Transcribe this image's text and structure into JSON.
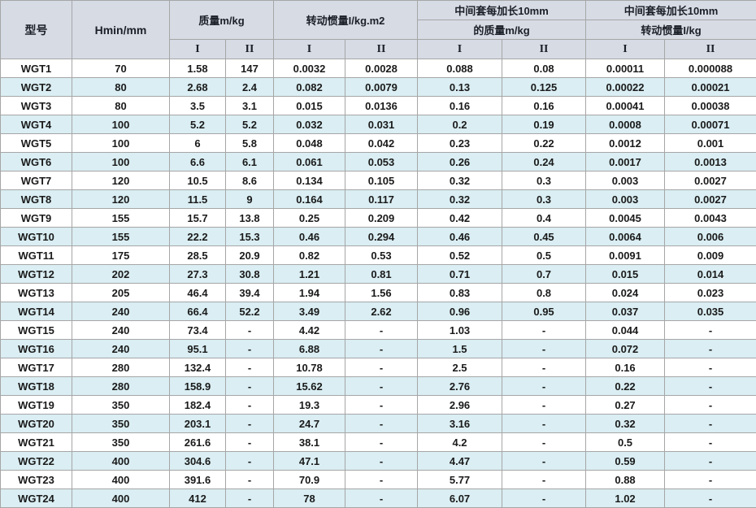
{
  "table": {
    "header": {
      "col_model": "型号",
      "col_hmin": "Hmin/mm",
      "group_mass": "质量m/kg",
      "group_inertia": "转动惯量I/kg.m2",
      "group_ext_mass_line1": "中间套每加长10mm",
      "group_ext_mass_line2": "的质量m/kg",
      "group_ext_inertia_line1": "中间套每加长10mm",
      "group_ext_inertia_line2": "转动惯量I/kg",
      "sub_I": "I",
      "sub_II": "II"
    },
    "rows": [
      [
        "WGT1",
        "70",
        "1.58",
        "147",
        "0.0032",
        "0.0028",
        "0.088",
        "0.08",
        "0.00011",
        "0.000088"
      ],
      [
        "WGT2",
        "80",
        "2.68",
        "2.4",
        "0.082",
        "0.0079",
        "0.13",
        "0.125",
        "0.00022",
        "0.00021"
      ],
      [
        "WGT3",
        "80",
        "3.5",
        "3.1",
        "0.015",
        "0.0136",
        "0.16",
        "0.16",
        "0.00041",
        "0.00038"
      ],
      [
        "WGT4",
        "100",
        "5.2",
        "5.2",
        "0.032",
        "0.031",
        "0.2",
        "0.19",
        "0.0008",
        "0.00071"
      ],
      [
        "WGT5",
        "100",
        "6",
        "5.8",
        "0.048",
        "0.042",
        "0.23",
        "0.22",
        "0.0012",
        "0.001"
      ],
      [
        "WGT6",
        "100",
        "6.6",
        "6.1",
        "0.061",
        "0.053",
        "0.26",
        "0.24",
        "0.0017",
        "0.0013"
      ],
      [
        "WGT7",
        "120",
        "10.5",
        "8.6",
        "0.134",
        "0.105",
        "0.32",
        "0.3",
        "0.003",
        "0.0027"
      ],
      [
        "WGT8",
        "120",
        "11.5",
        "9",
        "0.164",
        "0.117",
        "0.32",
        "0.3",
        "0.003",
        "0.0027"
      ],
      [
        "WGT9",
        "155",
        "15.7",
        "13.8",
        "0.25",
        "0.209",
        "0.42",
        "0.4",
        "0.0045",
        "0.0043"
      ],
      [
        "WGT10",
        "155",
        "22.2",
        "15.3",
        "0.46",
        "0.294",
        "0.46",
        "0.45",
        "0.0064",
        "0.006"
      ],
      [
        "WGT11",
        "175",
        "28.5",
        "20.9",
        "0.82",
        "0.53",
        "0.52",
        "0.5",
        "0.0091",
        "0.009"
      ],
      [
        "WGT12",
        "202",
        "27.3",
        "30.8",
        "1.21",
        "0.81",
        "0.71",
        "0.7",
        "0.015",
        "0.014"
      ],
      [
        "WGT13",
        "205",
        "46.4",
        "39.4",
        "1.94",
        "1.56",
        "0.83",
        "0.8",
        "0.024",
        "0.023"
      ],
      [
        "WGT14",
        "240",
        "66.4",
        "52.2",
        "3.49",
        "2.62",
        "0.96",
        "0.95",
        "0.037",
        "0.035"
      ],
      [
        "WGT15",
        "240",
        "73.4",
        "-",
        "4.42",
        "-",
        "1.03",
        "-",
        "0.044",
        "-"
      ],
      [
        "WGT16",
        "240",
        "95.1",
        "-",
        "6.88",
        "-",
        "1.5",
        "-",
        "0.072",
        "-"
      ],
      [
        "WGT17",
        "280",
        "132.4",
        "-",
        "10.78",
        "-",
        "2.5",
        "-",
        "0.16",
        "-"
      ],
      [
        "WGT18",
        "280",
        "158.9",
        "-",
        "15.62",
        "-",
        "2.76",
        "-",
        "0.22",
        "-"
      ],
      [
        "WGT19",
        "350",
        "182.4",
        "-",
        "19.3",
        "-",
        "2.96",
        "-",
        "0.27",
        "-"
      ],
      [
        "WGT20",
        "350",
        "203.1",
        "-",
        "24.7",
        "-",
        "3.16",
        "-",
        "0.32",
        "-"
      ],
      [
        "WGT21",
        "350",
        "261.6",
        "-",
        "38.1",
        "-",
        "4.2",
        "-",
        "0.5",
        "-"
      ],
      [
        "WGT22",
        "400",
        "304.6",
        "-",
        "47.1",
        "-",
        "4.47",
        "-",
        "0.59",
        "-"
      ],
      [
        "WGT23",
        "400",
        "391.6",
        "-",
        "70.9",
        "-",
        "5.77",
        "-",
        "0.88",
        "-"
      ],
      [
        "WGT24",
        "400",
        "412",
        "-",
        "78",
        "-",
        "6.07",
        "-",
        "1.02",
        "-"
      ]
    ]
  }
}
